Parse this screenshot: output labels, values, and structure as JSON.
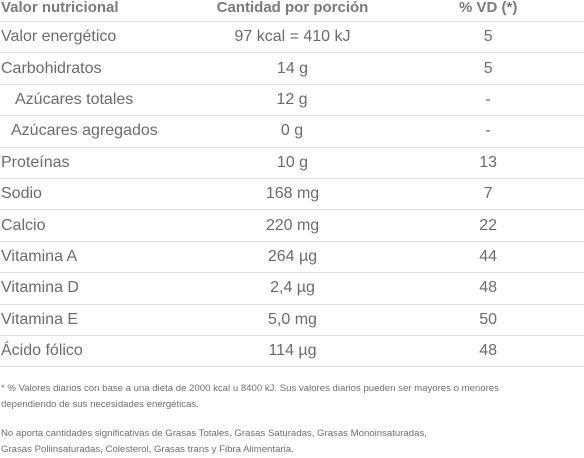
{
  "header": {
    "col_nutrient": "Valor nutricional",
    "col_amount": "Cantidad por porción",
    "col_dv": "% VD (*)"
  },
  "rows": [
    {
      "name": "Valor energético",
      "amount": "97 kcal = 410 kJ",
      "dv": "5"
    },
    {
      "name": "Carbohidratos",
      "amount": "14 g",
      "dv": "5"
    },
    {
      "name": "Azúcares totales",
      "amount": "12 g",
      "dv": "-"
    },
    {
      "name": "Azúcares agregados",
      "amount": "0 g",
      "dv": "-"
    },
    {
      "name": "Proteínas",
      "amount": "10 g",
      "dv": "13"
    },
    {
      "name": "Sodio",
      "amount": "168 mg",
      "dv": "7"
    },
    {
      "name": "Calcio",
      "amount": "220 mg",
      "dv": "22"
    },
    {
      "name": "Vitamina A",
      "amount": "264 µg",
      "dv": "44"
    },
    {
      "name": "Vitamina D",
      "amount": "2,4 µg",
      "dv": "48"
    },
    {
      "name": "Vitamina E",
      "amount": "5,0 mg",
      "dv": "50"
    },
    {
      "name": "Ácido fólico",
      "amount": "114 µg",
      "dv": "48"
    }
  ],
  "notes": {
    "footnote_line1": "* % Valores diarios con base a una dieta de 2000 kcal u 8400 kJ. Sus valores diarios pueden ser mayores o menores",
    "footnote_line2": "dependiendo de sus necesidades energéticas.",
    "disclaimer_line1": "No aporta cantidades significativas de Grasas Totales, Grasas Saturadas, Grasas Monoinsaturadas,",
    "disclaimer_line2": "Grasas Poliinsaturadas, Colesterol, Grasas trans y Fibra Alimentaria."
  }
}
